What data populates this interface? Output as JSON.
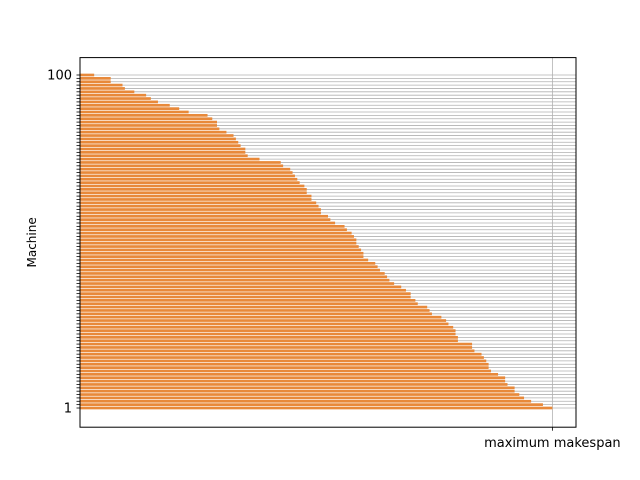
{
  "chart_data": {
    "type": "bar",
    "orientation": "horizontal",
    "title": "",
    "xlabel": "",
    "ylabel": "Machine",
    "x_tick_labels": [
      "maximum makespan"
    ],
    "y_tick_labels_shown": [
      "1",
      "100"
    ],
    "categories_range": [
      1,
      100
    ],
    "xlim": [
      0,
      1.05
    ],
    "bar_color": "#e8893a",
    "grid": "on",
    "grid_color": "#b0b0b0",
    "values": [
      1.0,
      0.98,
      0.955,
      0.94,
      0.93,
      0.92,
      0.92,
      0.905,
      0.9,
      0.9,
      0.885,
      0.87,
      0.865,
      0.865,
      0.86,
      0.855,
      0.85,
      0.835,
      0.83,
      0.83,
      0.8,
      0.8,
      0.795,
      0.795,
      0.79,
      0.78,
      0.775,
      0.765,
      0.745,
      0.74,
      0.735,
      0.715,
      0.71,
      0.7,
      0.7,
      0.69,
      0.68,
      0.665,
      0.655,
      0.65,
      0.645,
      0.635,
      0.63,
      0.625,
      0.61,
      0.6,
      0.6,
      0.595,
      0.59,
      0.585,
      0.585,
      0.58,
      0.575,
      0.565,
      0.56,
      0.54,
      0.53,
      0.525,
      0.51,
      0.51,
      0.505,
      0.5,
      0.49,
      0.49,
      0.48,
      0.48,
      0.475,
      0.465,
      0.46,
      0.455,
      0.45,
      0.445,
      0.43,
      0.425,
      0.38,
      0.355,
      0.35,
      0.35,
      0.34,
      0.335,
      0.33,
      0.325,
      0.31,
      0.295,
      0.29,
      0.29,
      0.28,
      0.27,
      0.23,
      0.21,
      0.19,
      0.165,
      0.15,
      0.14,
      0.115,
      0.095,
      0.09,
      0.065,
      0.065,
      0.03
    ]
  }
}
